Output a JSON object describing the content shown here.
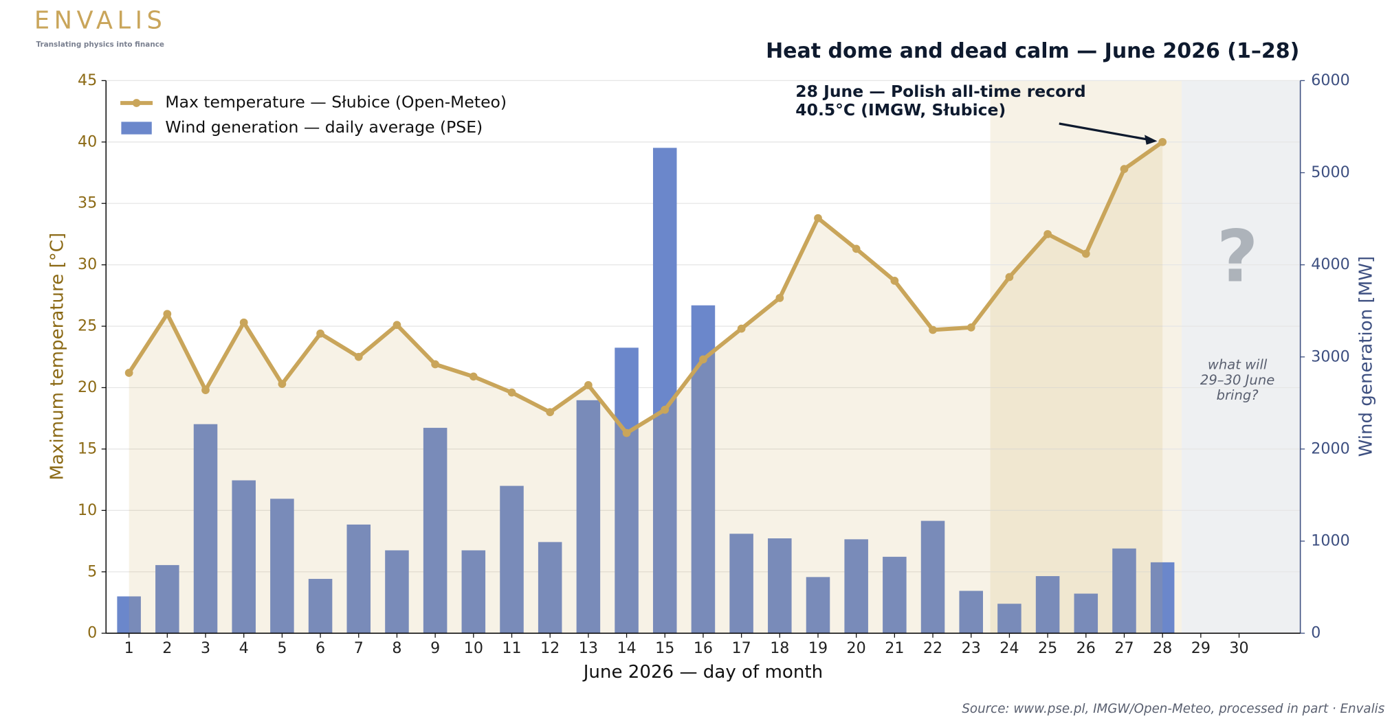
{
  "brand": {
    "name": "ENVALIS",
    "tagline": "Translating physics into finance"
  },
  "chart_data": {
    "type": "bar_line",
    "title": "Heat dome and dead calm — June 2026 (1–28)",
    "x": [
      1,
      2,
      3,
      4,
      5,
      6,
      7,
      8,
      9,
      10,
      11,
      12,
      13,
      14,
      15,
      16,
      17,
      18,
      19,
      20,
      21,
      22,
      23,
      24,
      25,
      26,
      27,
      28,
      29,
      30
    ],
    "xlim": [
      0.4,
      31.6
    ],
    "xticks": [
      1,
      2,
      3,
      4,
      5,
      6,
      7,
      8,
      9,
      10,
      11,
      12,
      13,
      14,
      15,
      16,
      17,
      18,
      19,
      20,
      21,
      22,
      23,
      24,
      25,
      26,
      27,
      28,
      29,
      30
    ],
    "xlabel": "June 2026 — day of month",
    "ylabel": "Maximum temperature [°C]",
    "ylim": [
      0,
      45
    ],
    "yticks": [
      0,
      5,
      10,
      15,
      20,
      25,
      30,
      35,
      40,
      45
    ],
    "y2label": "Wind generation [MW]",
    "y2lim": [
      0,
      6000
    ],
    "y2ticks": [
      0,
      1000,
      2000,
      3000,
      4000,
      5000,
      6000
    ],
    "grid": true,
    "legend": "upper left",
    "series": [
      {
        "name": "Max temperature — Słubice (Open-Meteo)",
        "color": "#c9a55a",
        "kind": "line",
        "values": [
          21.2,
          26.0,
          19.8,
          25.3,
          20.3,
          24.4,
          22.5,
          25.1,
          21.9,
          20.9,
          19.6,
          18.0,
          20.2,
          16.3,
          18.2,
          22.3,
          24.8,
          27.3,
          33.8,
          31.3,
          28.7,
          24.7,
          24.9,
          29.0,
          32.5,
          30.9,
          37.8,
          40.0,
          null,
          null
        ]
      },
      {
        "name": "Wind generation — daily average (PSE)",
        "color": "#6b87cb",
        "kind": "bar",
        "axis": "y2",
        "values": [
          400,
          740,
          2270,
          1660,
          1460,
          590,
          1180,
          900,
          2230,
          900,
          1600,
          990,
          2530,
          3100,
          5270,
          3560,
          1080,
          1030,
          610,
          1020,
          830,
          1220,
          460,
          320,
          620,
          430,
          920,
          770,
          null,
          null
        ]
      }
    ],
    "highlight_span": [
      23.5,
      28.5
    ],
    "forecast_span": [
      28.5,
      31.6
    ],
    "annotations": {
      "record": [
        "28 June — Polish all-time record",
        "40.5°C (IMGW, Słubice)"
      ],
      "question_mark": "?",
      "question": [
        "what will",
        "29–30 June",
        "bring?"
      ]
    },
    "source": "Source: www.pse.pl, IMGW/Open-Meteo, processed in part · Envalis"
  }
}
